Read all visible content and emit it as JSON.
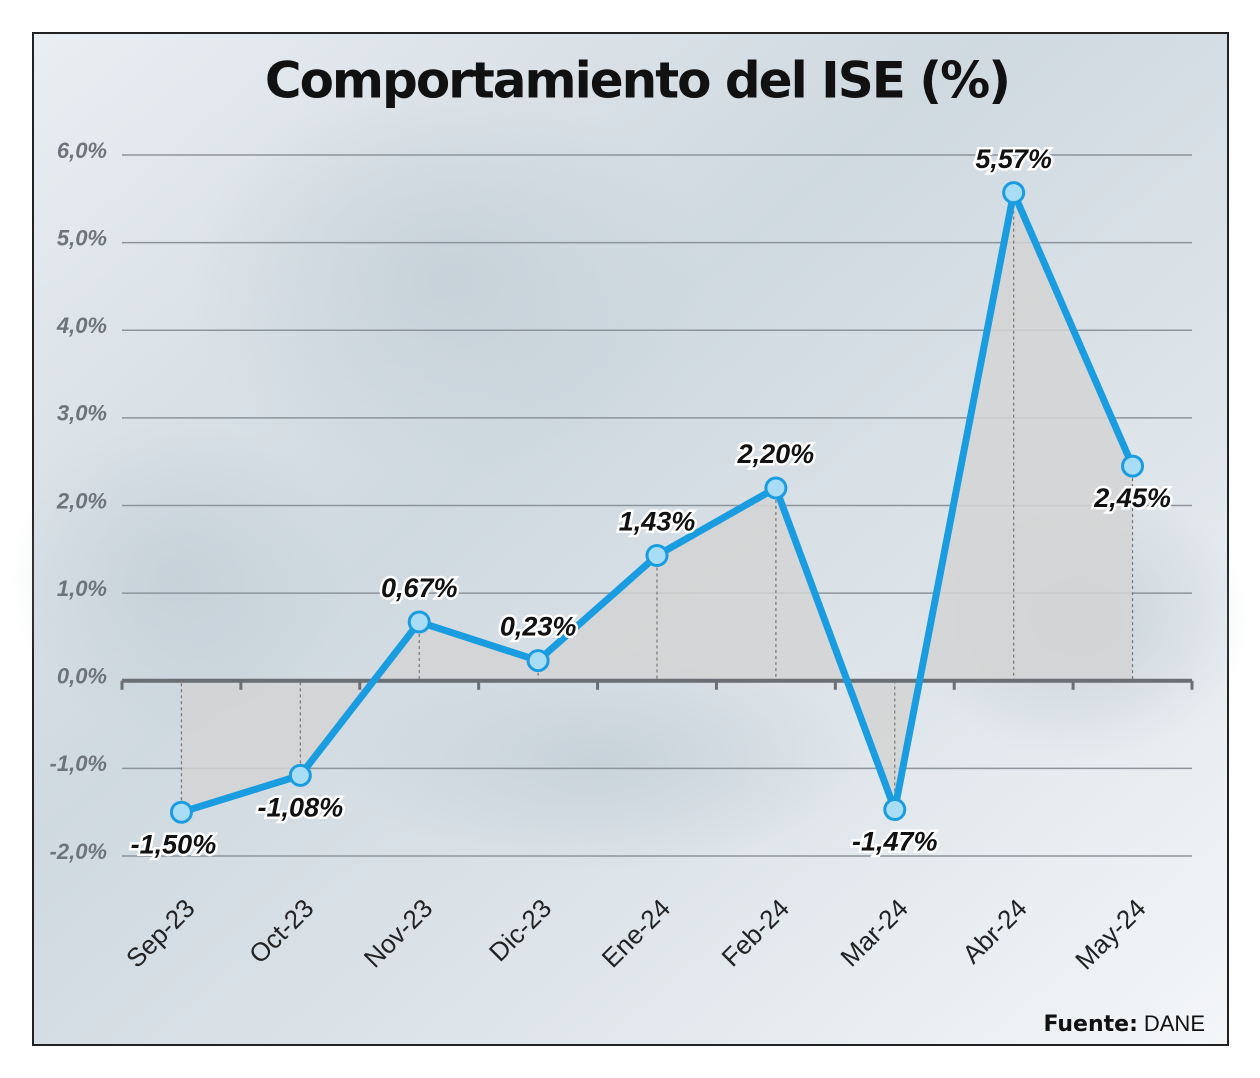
{
  "chart_data": {
    "type": "line",
    "title": "Comportamiento del ISE (%)",
    "categories": [
      "Sep-23",
      "Oct-23",
      "Nov-23",
      "Dic-23",
      "Ene-24",
      "Feb-24",
      "Mar-24",
      "Abr-24",
      "May-24"
    ],
    "series": [
      {
        "name": "ISE",
        "color": "#1a9de0",
        "values": [
          -1.5,
          -1.08,
          0.67,
          0.23,
          1.43,
          2.2,
          -1.47,
          5.57,
          2.45
        ],
        "value_labels": [
          "-1,50%",
          "-1,08%",
          "0,67%",
          "0,23%",
          "1,43%",
          "2,20%",
          "-1,47%",
          "5,57%",
          "2,45%"
        ]
      }
    ],
    "ylim": [
      -2,
      6
    ],
    "yticks": [
      {
        "value": -2,
        "label": "-2,0%"
      },
      {
        "value": -1,
        "label": "-1,0%"
      },
      {
        "value": 0,
        "label": "0,0%"
      },
      {
        "value": 1,
        "label": "1,0%"
      },
      {
        "value": 2,
        "label": "2,0%"
      },
      {
        "value": 3,
        "label": "3,0%"
      },
      {
        "value": 4,
        "label": "4,0%"
      },
      {
        "value": 5,
        "label": "5,0%"
      },
      {
        "value": 6,
        "label": "6,0%"
      }
    ],
    "grid": true,
    "source": {
      "label": "Fuente:",
      "text": "DANE"
    }
  }
}
